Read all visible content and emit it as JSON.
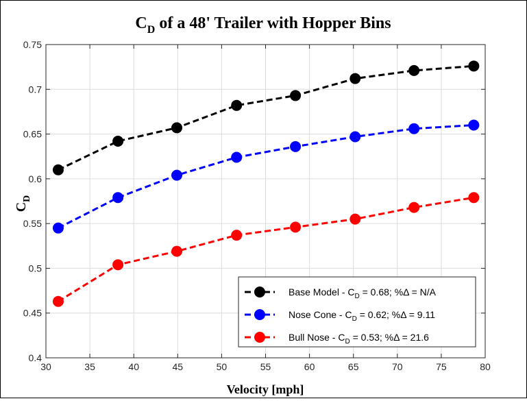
{
  "chart_data": {
    "type": "line",
    "title_main": "C",
    "title_sub": "D",
    "title_rest": " of a 48' Trailer with Hopper Bins",
    "xlabel": "Velocity [mph]",
    "ylabel_main": "C",
    "ylabel_sub": "D",
    "xlim": [
      30,
      80
    ],
    "ylim": [
      0.4,
      0.75
    ],
    "x_ticks": [
      30,
      35,
      40,
      45,
      50,
      55,
      60,
      65,
      70,
      75,
      80
    ],
    "x_tick_labels": [
      "30",
      "35",
      "40",
      "45",
      "50",
      "55",
      "60",
      "65",
      "70",
      "75",
      "80"
    ],
    "y_ticks": [
      0.4,
      0.45,
      0.5,
      0.55,
      0.6,
      0.65,
      0.7,
      0.75
    ],
    "y_tick_labels": [
      "0.4",
      "0.45",
      "0.5",
      "0.55",
      "0.6",
      "0.65",
      "0.7",
      "0.75"
    ],
    "grid": true,
    "legend_position": "bottom-right",
    "x": [
      31.4,
      38.2,
      44.9,
      51.7,
      58.4,
      65.2,
      71.9,
      78.7
    ],
    "series": [
      {
        "name": "Base Model",
        "legend_before": "Base Model - C",
        "legend_sub": "D",
        "legend_after": " = 0.68; %Δ = N/A",
        "color": "#000000",
        "values": [
          0.61,
          0.642,
          0.657,
          0.682,
          0.693,
          0.712,
          0.721,
          0.726
        ]
      },
      {
        "name": "Nose Cone",
        "legend_before": "Nose Cone - C",
        "legend_sub": "D",
        "legend_after": " = 0.62; %Δ = 9.11",
        "color": "#0000ff",
        "values": [
          0.545,
          0.579,
          0.604,
          0.624,
          0.636,
          0.647,
          0.656,
          0.66
        ]
      },
      {
        "name": "Bull Nose",
        "legend_before": "Bull Nose - C",
        "legend_sub": "D",
        "legend_after": " = 0.53; %Δ = 21.6",
        "color": "#ff0000",
        "values": [
          0.463,
          0.504,
          0.519,
          0.537,
          0.546,
          0.555,
          0.568,
          0.579
        ]
      }
    ]
  }
}
